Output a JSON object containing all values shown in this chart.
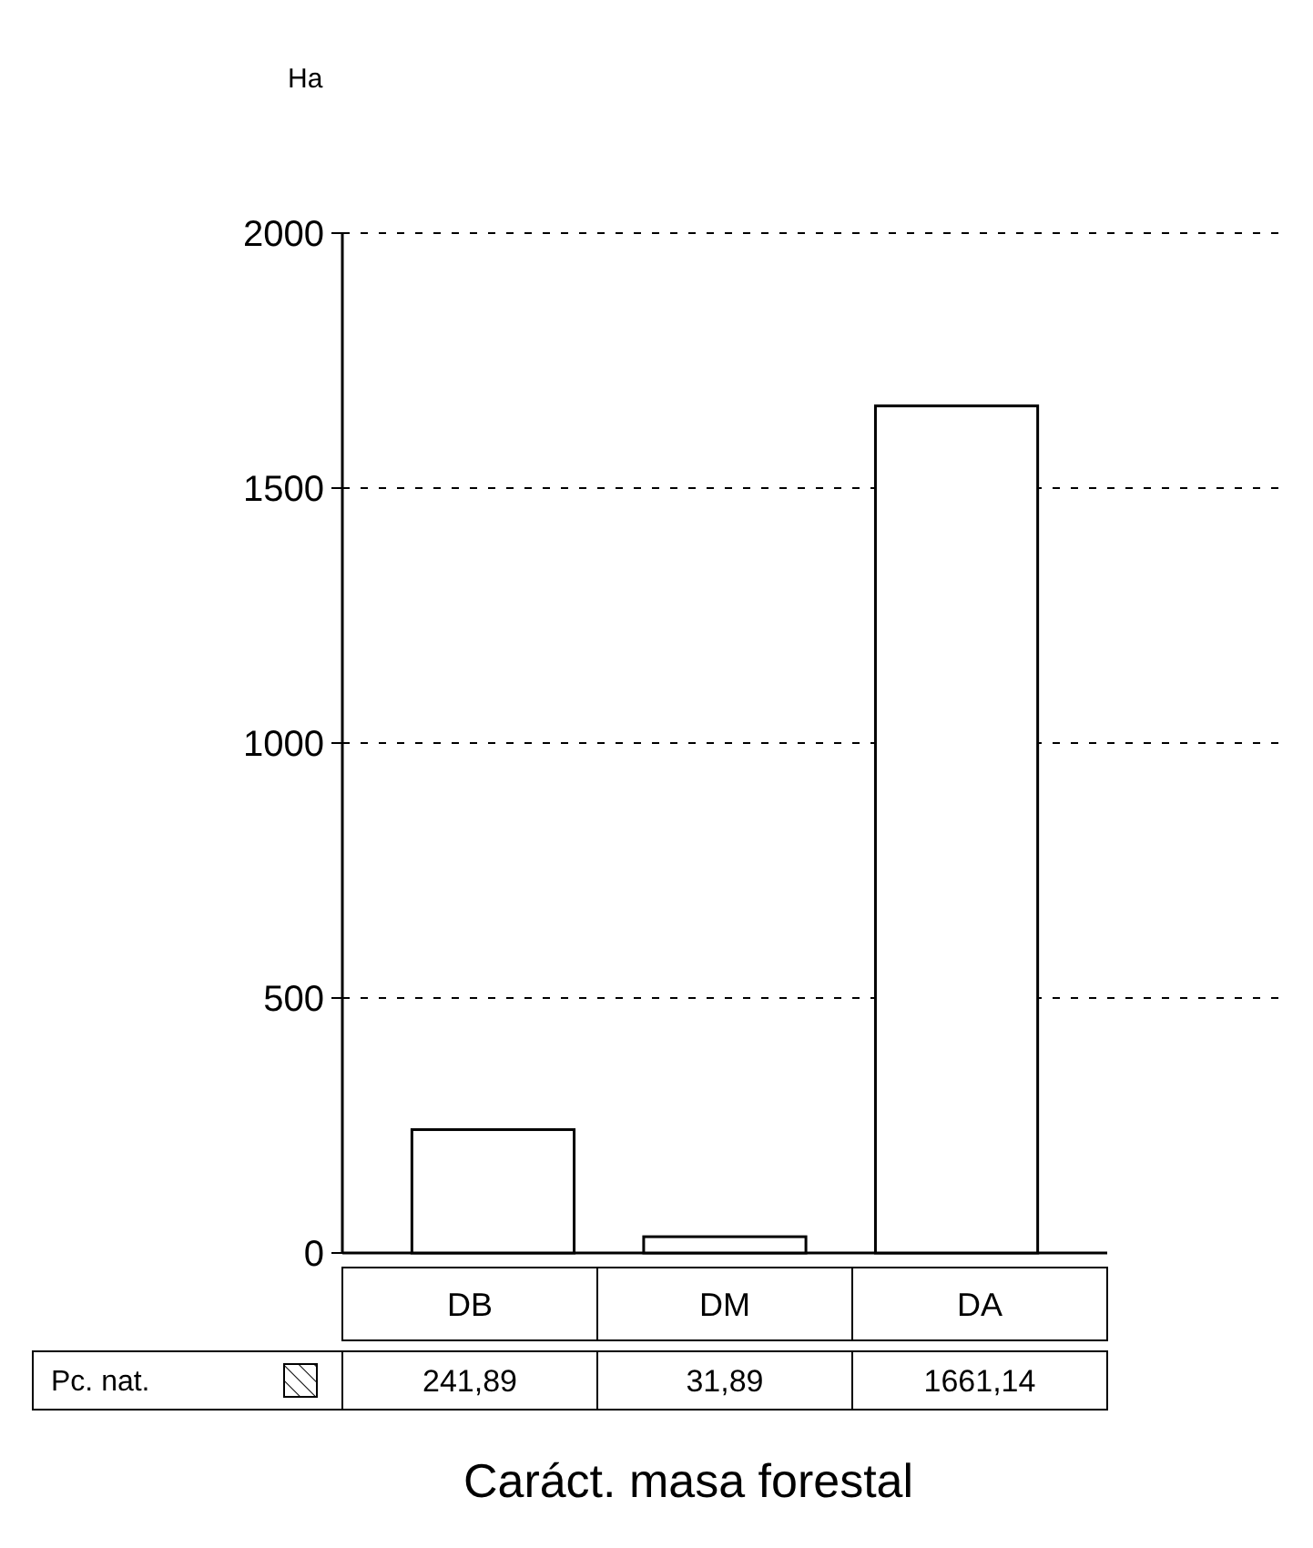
{
  "chart_data": {
    "type": "bar",
    "ylabel": "Ha",
    "xlabel": "Caráct. masa forestal",
    "categories": [
      "DB",
      "DM",
      "DA"
    ],
    "series": [
      {
        "name": "Pc. nat.",
        "color": "#ffffff",
        "values": [
          241.89,
          31.89,
          1661.14
        ],
        "value_labels": [
          "241,89",
          "31,89",
          "1661,14"
        ]
      }
    ],
    "ylim": [
      0,
      2000
    ],
    "yticks": [
      0,
      500,
      1000,
      1500,
      2000
    ],
    "grid": "y",
    "legend": "bottom"
  }
}
